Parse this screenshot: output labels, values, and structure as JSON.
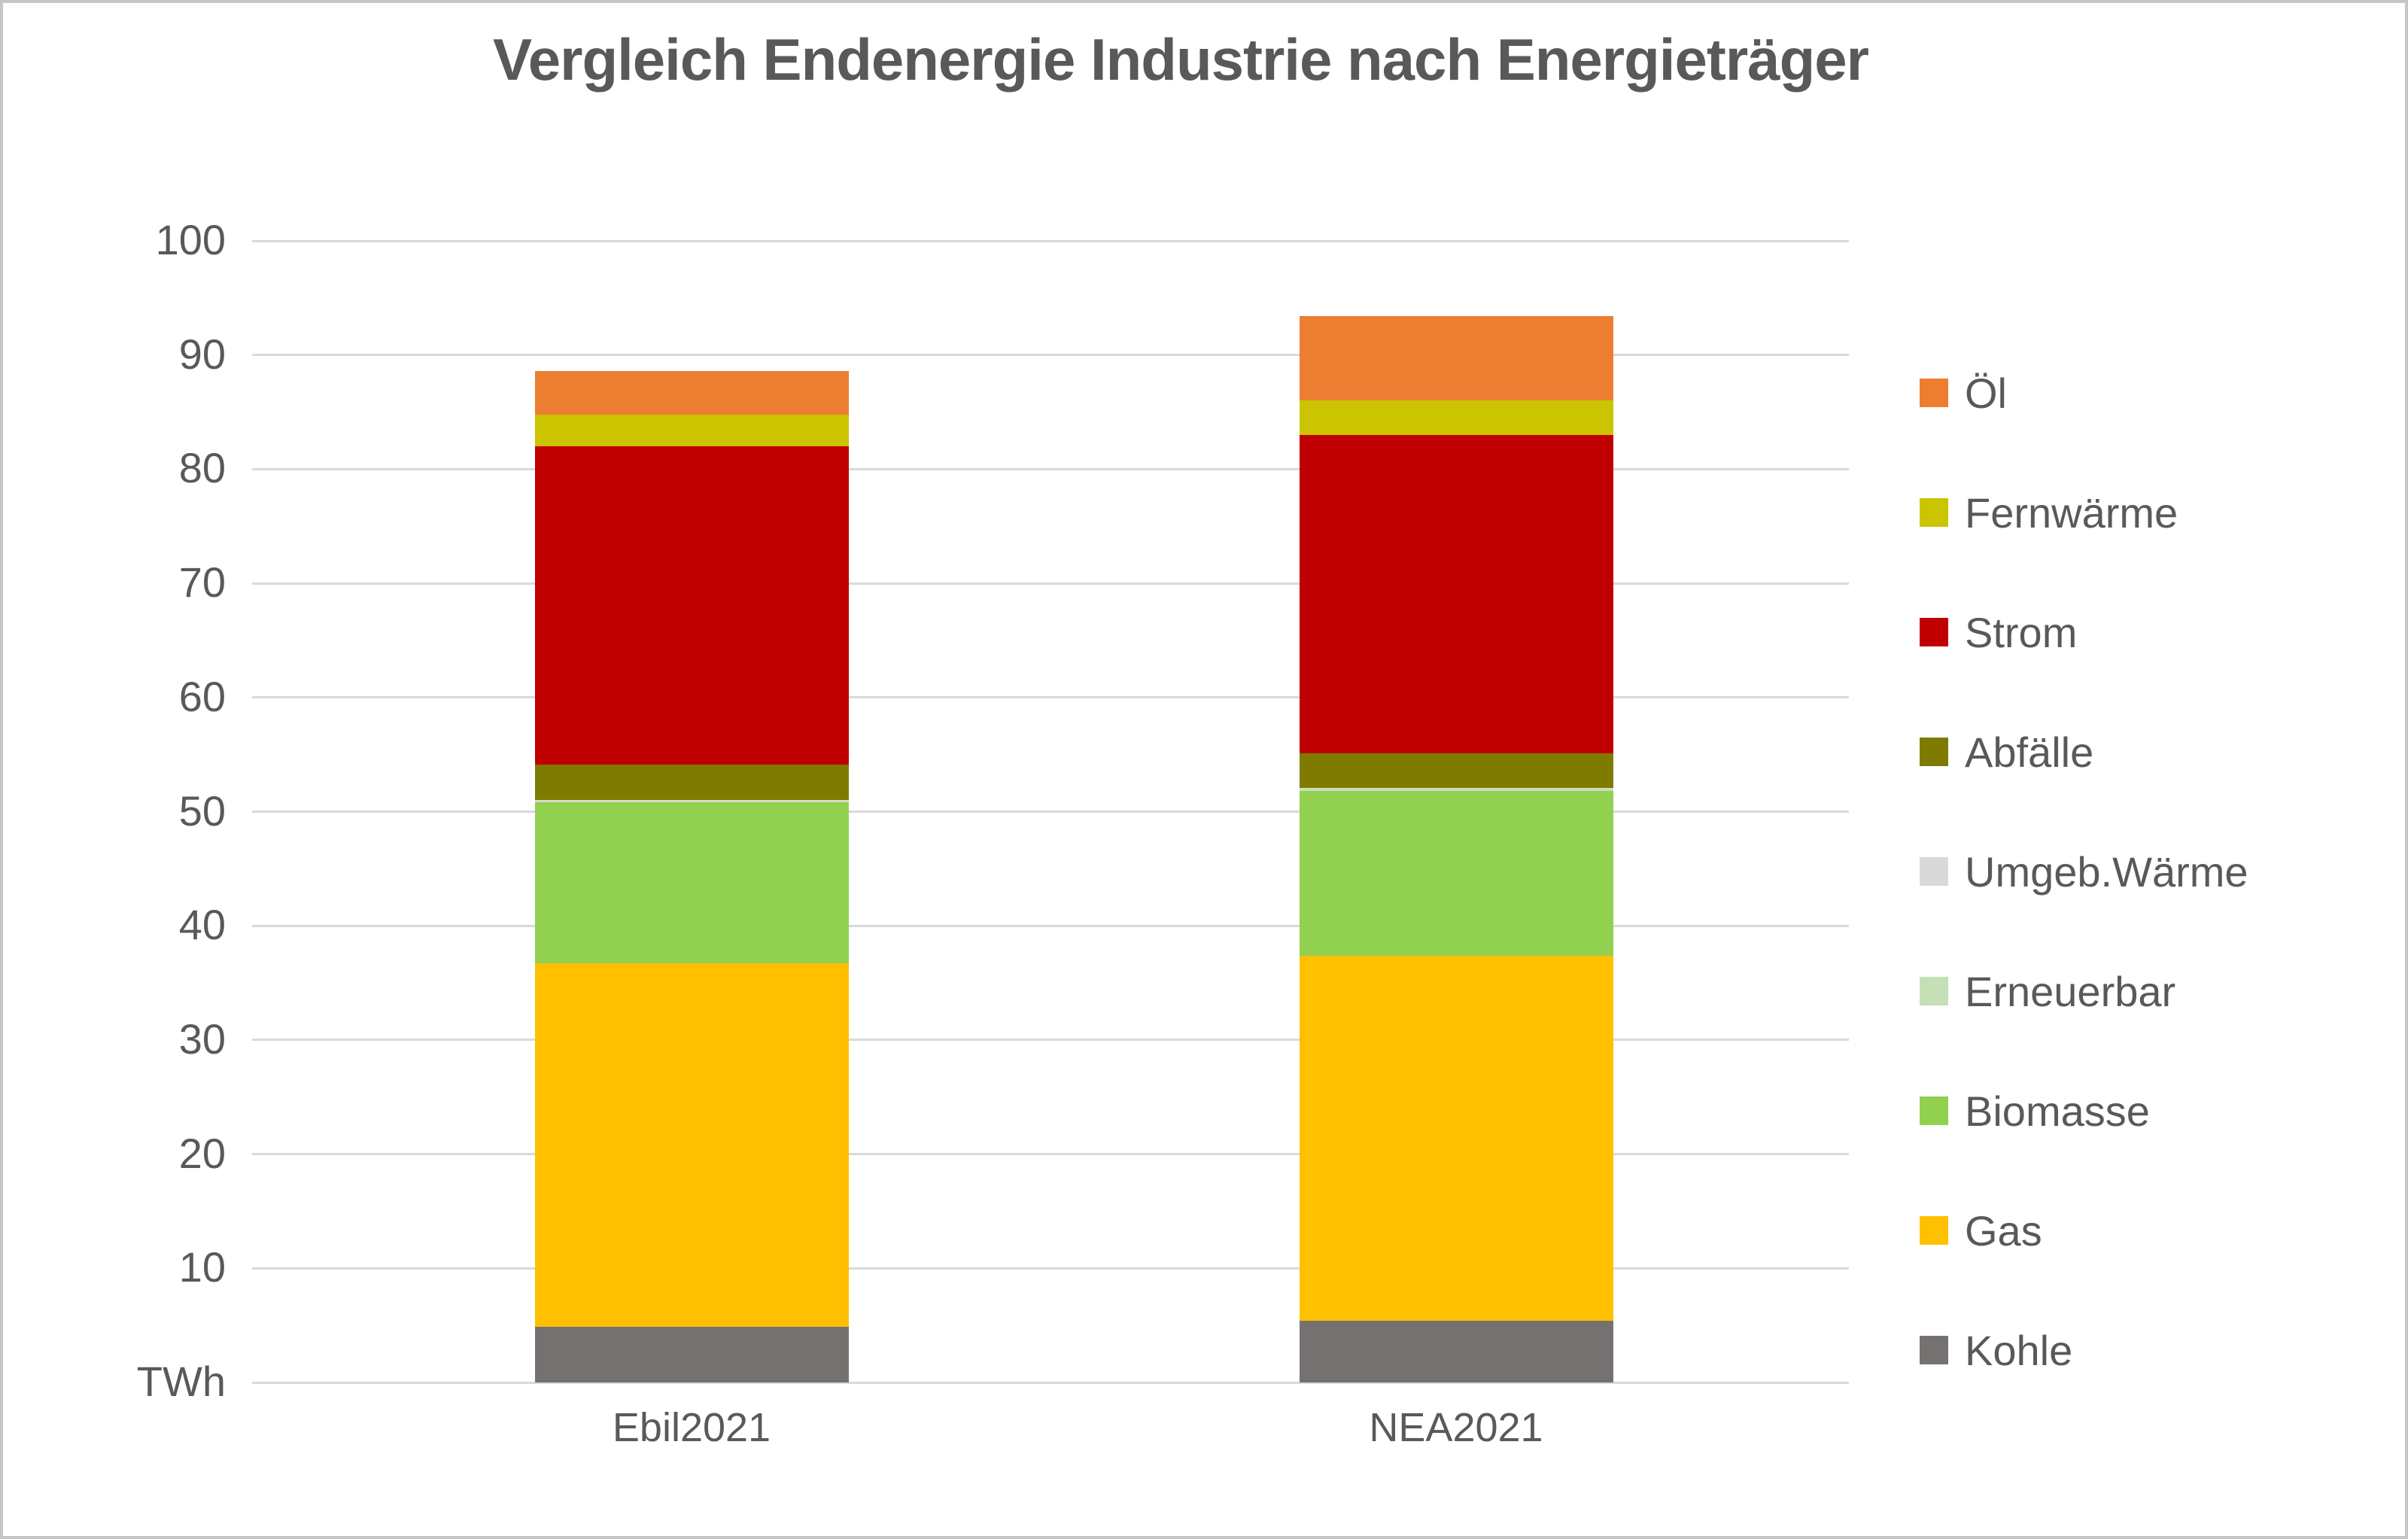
{
  "title": "Vergleich Endenergie Industrie nach Energieträger",
  "y_axis": {
    "unit_label": "TWh",
    "tick_values": [
      100,
      90,
      80,
      70,
      60,
      50,
      40,
      30,
      20,
      10,
      0
    ],
    "tick_labels": [
      "100",
      "90",
      "80",
      "70",
      "60",
      "50",
      "40",
      "30",
      "20",
      "10",
      "TWh"
    ]
  },
  "chart_data": {
    "type": "bar",
    "stacked": true,
    "title": "Vergleich Endenergie Industrie nach Energieträger",
    "ylabel": "TWh",
    "ylim": [
      0,
      100
    ],
    "grid": true,
    "legend_position": "right",
    "categories": [
      "Ebil2021",
      "NEA2021"
    ],
    "series": [
      {
        "name": "Kohle",
        "color": "#767171",
        "values": [
          4.9,
          5.4
        ]
      },
      {
        "name": "Gas",
        "color": "#FFC000",
        "values": [
          31.8,
          32.0
        ]
      },
      {
        "name": "Biomasse",
        "color": "#92D050",
        "values": [
          14.1,
          14.4
        ]
      },
      {
        "name": "Erneuerbar",
        "color": "#C5E0B4",
        "values": [
          0.1,
          0.2
        ]
      },
      {
        "name": "Umgeb.Wärme",
        "color": "#D9D9D9",
        "values": [
          0.1,
          0.1
        ]
      },
      {
        "name": "Abfälle",
        "color": "#7E7B00",
        "values": [
          3.1,
          3.0
        ]
      },
      {
        "name": "Strom",
        "color": "#C00000",
        "values": [
          27.9,
          27.9
        ]
      },
      {
        "name": "Fernwärme",
        "color": "#CBC400",
        "values": [
          2.8,
          3.0
        ]
      },
      {
        "name": "Öl",
        "color": "#ED7D31",
        "values": [
          3.8,
          7.4
        ]
      }
    ],
    "totals": [
      88.6,
      93.4
    ],
    "legend_top_to_bottom": [
      "Öl",
      "Fernwärme",
      "Strom",
      "Abfälle",
      "Umgeb.Wärme",
      "Erneuerbar",
      "Biomasse",
      "Gas",
      "Kohle"
    ]
  },
  "colors": {
    "text": "#595959",
    "gridline": "#D9D9D9",
    "background": "#FFFFFF",
    "border": "#C6C6C6"
  }
}
